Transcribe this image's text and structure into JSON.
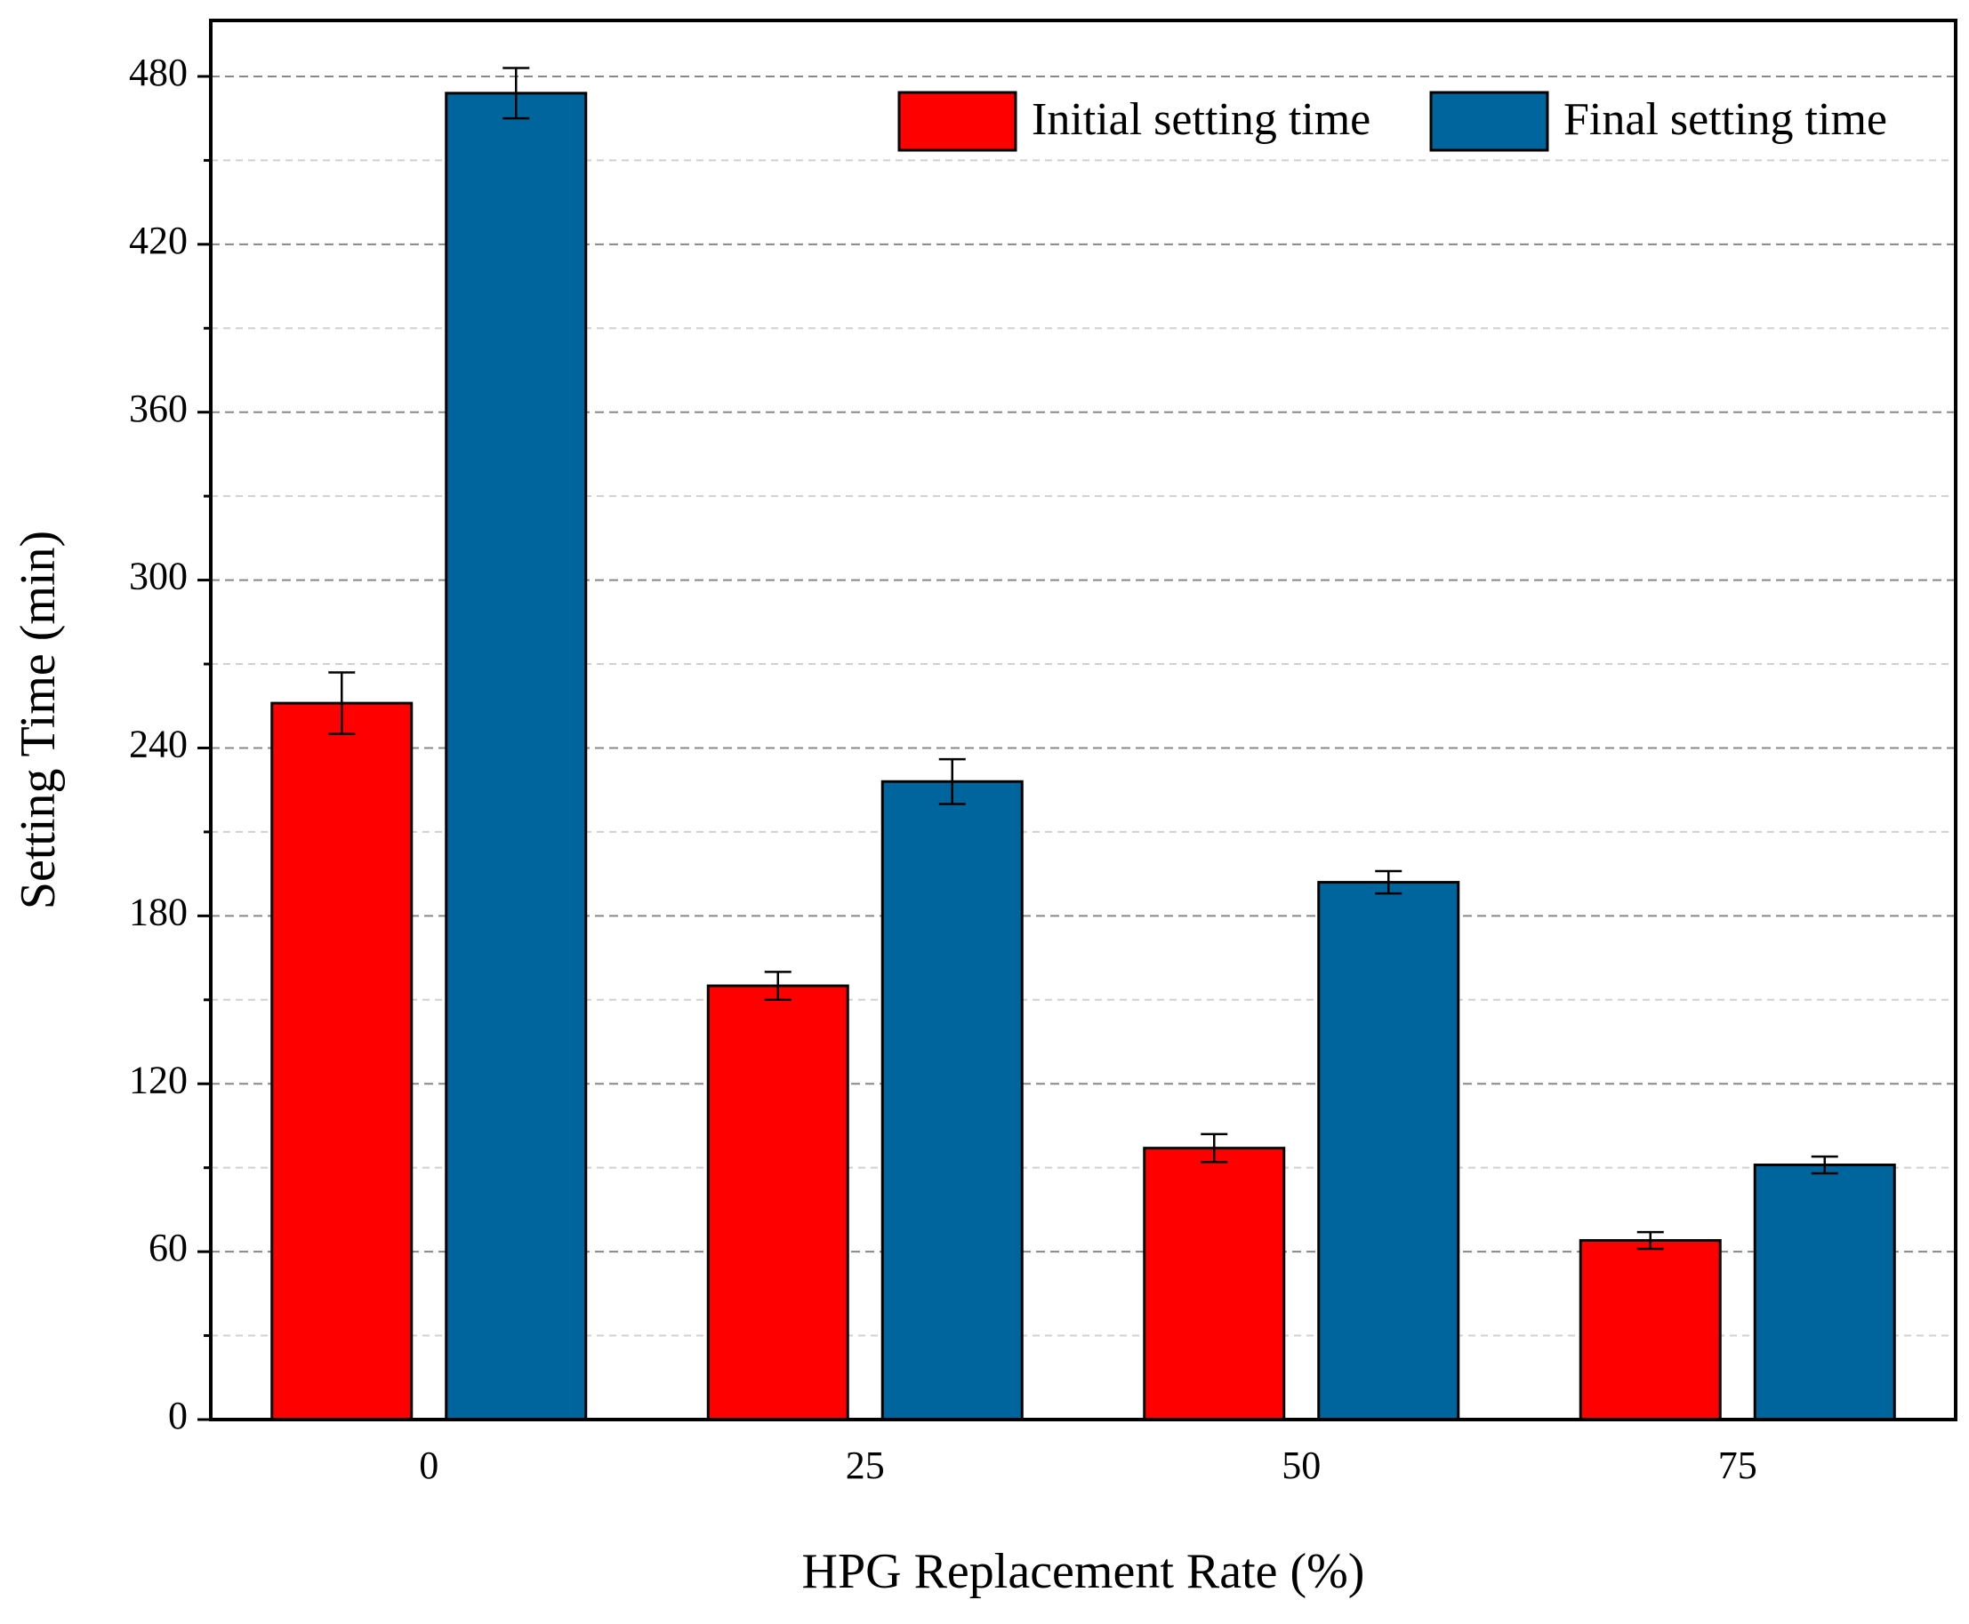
{
  "chart_data": {
    "type": "bar",
    "x_label": "HPG Replacement Rate (%)",
    "y_label": "Setting Time (min)",
    "categories": [
      "0",
      "25",
      "50",
      "75"
    ],
    "series": [
      {
        "name": "Initial setting time",
        "color": "#ff0000",
        "values": [
          256,
          155,
          97,
          64
        ],
        "errors": [
          11,
          5,
          5,
          3
        ]
      },
      {
        "name": "Final setting time",
        "color": "#00659c",
        "values": [
          474,
          228,
          192,
          91
        ],
        "errors": [
          9,
          8,
          4,
          3
        ]
      }
    ],
    "ylim": [
      0,
      500
    ],
    "yticks": [
      0,
      60,
      120,
      180,
      240,
      300,
      360,
      420,
      480
    ],
    "minor_yticks": [
      30,
      90,
      150,
      210,
      270,
      330,
      390,
      450
    ],
    "grid": true,
    "legend": "top-right"
  }
}
